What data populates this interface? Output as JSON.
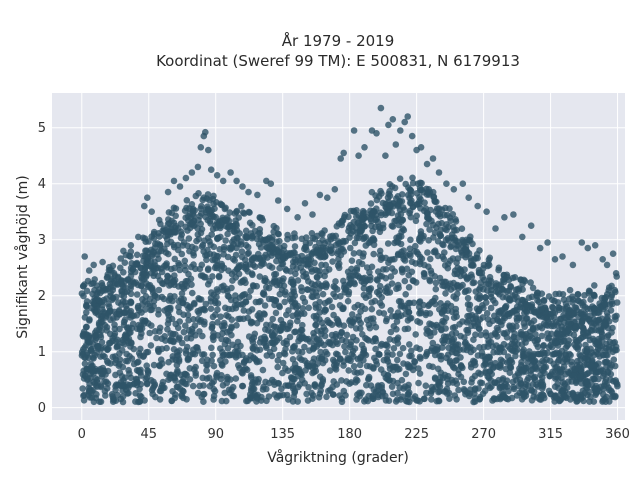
{
  "chart_data": {
    "type": "scatter",
    "title_lines": [
      "År 1979 - 2019",
      "Koordinat (Sweref 99 TM): E 500831, N 6179913"
    ],
    "xlabel": "Vågriktning (grader)",
    "ylabel": "Signifikant våghöjd (m)",
    "xlim": [
      -20,
      365
    ],
    "ylim": [
      -0.22,
      5.62
    ],
    "xticks": [
      0,
      45,
      90,
      135,
      180,
      225,
      270,
      315,
      360
    ],
    "yticks": [
      0,
      1,
      2,
      3,
      4,
      5
    ],
    "grid": true,
    "colors": {
      "background": "#e5e7ef",
      "grid": "#ffffff",
      "marker": "#2e5468"
    },
    "envelope": {
      "direction_deg": [
        0,
        10,
        20,
        30,
        40,
        50,
        60,
        70,
        80,
        90,
        100,
        110,
        120,
        130,
        140,
        150,
        160,
        170,
        180,
        190,
        200,
        210,
        220,
        230,
        240,
        250,
        260,
        270,
        280,
        290,
        300,
        310,
        320,
        330,
        340,
        350,
        360
      ],
      "dense_top_m": [
        1.9,
        2.0,
        2.2,
        2.4,
        2.7,
        2.95,
        3.2,
        3.35,
        3.5,
        3.45,
        3.35,
        3.2,
        3.05,
        2.9,
        2.8,
        2.7,
        2.85,
        3.0,
        3.2,
        3.4,
        3.6,
        3.75,
        3.85,
        3.7,
        3.45,
        3.1,
        2.75,
        2.45,
        2.2,
        2.0,
        1.9,
        1.8,
        1.75,
        1.75,
        1.8,
        1.9,
        2.0
      ],
      "dense_bottom_m": 0.1
    },
    "outliers": [
      {
        "x": 2,
        "y": 2.7
      },
      {
        "x": 5,
        "y": 2.45
      },
      {
        "x": 8,
        "y": 2.55
      },
      {
        "x": 14,
        "y": 2.6
      },
      {
        "x": 20,
        "y": 2.45
      },
      {
        "x": 28,
        "y": 2.8
      },
      {
        "x": 33,
        "y": 2.9
      },
      {
        "x": 38,
        "y": 3.05
      },
      {
        "x": 42,
        "y": 3.6
      },
      {
        "x": 44,
        "y": 3.75
      },
      {
        "x": 47,
        "y": 3.5
      },
      {
        "x": 52,
        "y": 3.35
      },
      {
        "x": 58,
        "y": 3.85
      },
      {
        "x": 62,
        "y": 4.05
      },
      {
        "x": 66,
        "y": 3.95
      },
      {
        "x": 70,
        "y": 4.1
      },
      {
        "x": 74,
        "y": 4.2
      },
      {
        "x": 78,
        "y": 4.3
      },
      {
        "x": 80,
        "y": 4.65
      },
      {
        "x": 82,
        "y": 4.85
      },
      {
        "x": 83,
        "y": 4.92
      },
      {
        "x": 85,
        "y": 4.6
      },
      {
        "x": 87,
        "y": 4.25
      },
      {
        "x": 91,
        "y": 4.15
      },
      {
        "x": 95,
        "y": 4.05
      },
      {
        "x": 100,
        "y": 4.2
      },
      {
        "x": 104,
        "y": 4.05
      },
      {
        "x": 108,
        "y": 3.95
      },
      {
        "x": 112,
        "y": 3.85
      },
      {
        "x": 118,
        "y": 3.8
      },
      {
        "x": 124,
        "y": 4.05
      },
      {
        "x": 127,
        "y": 4.0
      },
      {
        "x": 132,
        "y": 3.7
      },
      {
        "x": 138,
        "y": 3.55
      },
      {
        "x": 145,
        "y": 3.4
      },
      {
        "x": 150,
        "y": 3.65
      },
      {
        "x": 155,
        "y": 3.45
      },
      {
        "x": 160,
        "y": 3.8
      },
      {
        "x": 165,
        "y": 3.75
      },
      {
        "x": 170,
        "y": 3.9
      },
      {
        "x": 174,
        "y": 4.45
      },
      {
        "x": 176,
        "y": 4.55
      },
      {
        "x": 183,
        "y": 4.95
      },
      {
        "x": 186,
        "y": 4.5
      },
      {
        "x": 190,
        "y": 4.65
      },
      {
        "x": 195,
        "y": 4.95
      },
      {
        "x": 198,
        "y": 4.9
      },
      {
        "x": 201,
        "y": 5.35
      },
      {
        "x": 204,
        "y": 4.5
      },
      {
        "x": 206,
        "y": 5.05
      },
      {
        "x": 209,
        "y": 5.15
      },
      {
        "x": 211,
        "y": 4.7
      },
      {
        "x": 214,
        "y": 4.95
      },
      {
        "x": 217,
        "y": 5.1
      },
      {
        "x": 219,
        "y": 5.2
      },
      {
        "x": 222,
        "y": 4.85
      },
      {
        "x": 225,
        "y": 4.6
      },
      {
        "x": 228,
        "y": 4.65
      },
      {
        "x": 232,
        "y": 4.35
      },
      {
        "x": 236,
        "y": 4.45
      },
      {
        "x": 240,
        "y": 4.2
      },
      {
        "x": 245,
        "y": 4.0
      },
      {
        "x": 250,
        "y": 3.9
      },
      {
        "x": 256,
        "y": 4.0
      },
      {
        "x": 260,
        "y": 3.75
      },
      {
        "x": 266,
        "y": 3.6
      },
      {
        "x": 272,
        "y": 3.5
      },
      {
        "x": 278,
        "y": 3.2
      },
      {
        "x": 284,
        "y": 3.4
      },
      {
        "x": 290,
        "y": 3.45
      },
      {
        "x": 296,
        "y": 3.05
      },
      {
        "x": 302,
        "y": 3.25
      },
      {
        "x": 308,
        "y": 2.85
      },
      {
        "x": 313,
        "y": 2.95
      },
      {
        "x": 318,
        "y": 2.65
      },
      {
        "x": 323,
        "y": 2.7
      },
      {
        "x": 330,
        "y": 2.55
      },
      {
        "x": 336,
        "y": 2.95
      },
      {
        "x": 340,
        "y": 2.85
      },
      {
        "x": 345,
        "y": 2.9
      },
      {
        "x": 350,
        "y": 2.65
      },
      {
        "x": 353,
        "y": 2.55
      },
      {
        "x": 357,
        "y": 2.75
      },
      {
        "x": 359,
        "y": 2.4
      }
    ]
  }
}
